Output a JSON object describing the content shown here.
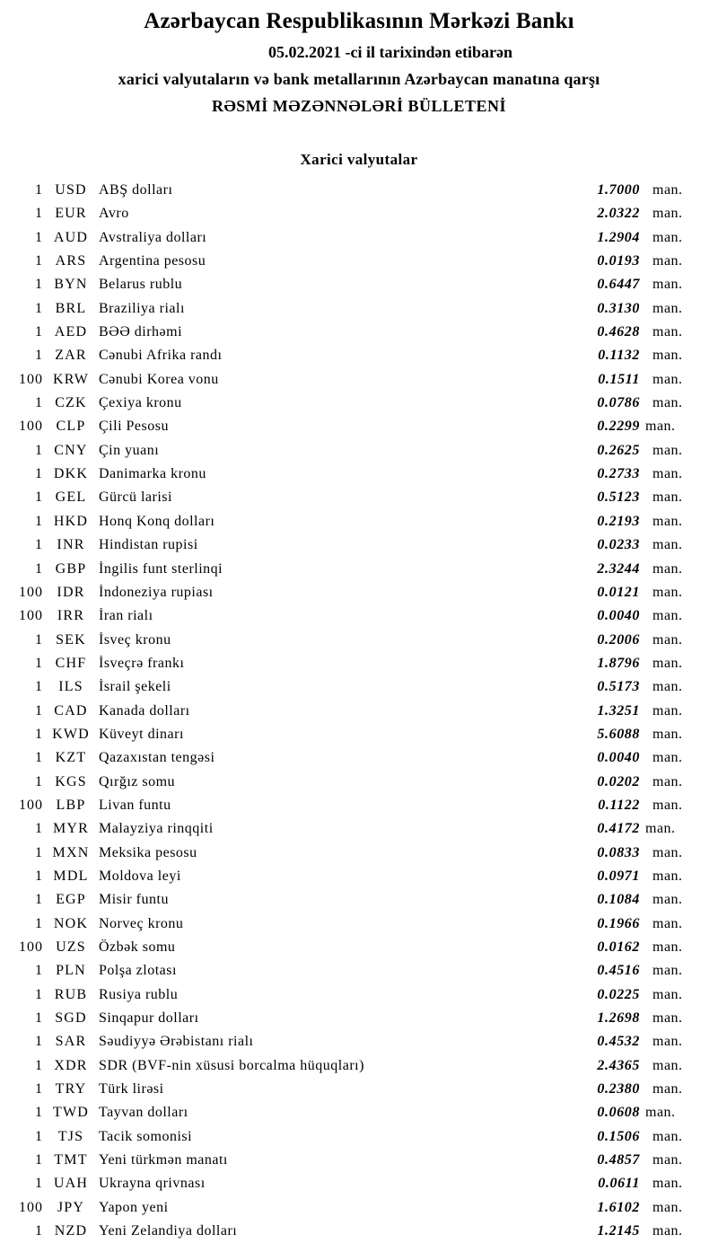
{
  "header": {
    "bank_name": "Azərbaycan Respublikasının Mərkəzi Bankı",
    "date_line": "05.02.2021 -ci il tarixindən etibarən",
    "scope_line": "xarici valyutaların və bank metallarının Azərbaycan manatına qarşı",
    "bulletin_title": "RƏSMİ MƏZƏNNƏLƏRİ BÜLLETENİ"
  },
  "section": {
    "title": "Xarici valyutalar"
  },
  "unit_label": "man.",
  "rates": [
    {
      "qty": "1",
      "code": "USD",
      "name": "ABŞ dolları",
      "rate": "1.7000"
    },
    {
      "qty": "1",
      "code": "EUR",
      "name": "Avro",
      "rate": "2.0322"
    },
    {
      "qty": "1",
      "code": "AUD",
      "name": "Avstraliya dolları",
      "rate": "1.2904"
    },
    {
      "qty": "1",
      "code": "ARS",
      "name": "Argentina pesosu",
      "rate": "0.0193"
    },
    {
      "qty": "1",
      "code": "BYN",
      "name": "Belarus rublu",
      "rate": "0.6447"
    },
    {
      "qty": "1",
      "code": "BRL",
      "name": "Braziliya rialı",
      "rate": "0.3130"
    },
    {
      "qty": "1",
      "code": "AED",
      "name": "BƏƏ dirhəmi",
      "rate": "0.4628"
    },
    {
      "qty": "1",
      "code": "ZAR",
      "name": "Cənubi Afrika randı",
      "rate": "0.1132"
    },
    {
      "qty": "100",
      "code": "KRW",
      "name": "Cənubi Korea vonu",
      "rate": "0.1511"
    },
    {
      "qty": "1",
      "code": "CZK",
      "name": "Çexiya kronu",
      "rate": "0.0786"
    },
    {
      "qty": "100",
      "code": "CLP",
      "name": "Çili Pesosu",
      "rate": "0.2299",
      "tight": true
    },
    {
      "qty": "1",
      "code": "CNY",
      "name": "Çin yuanı",
      "rate": "0.2625"
    },
    {
      "qty": "1",
      "code": "DKK",
      "name": "Danimarka kronu",
      "rate": "0.2733"
    },
    {
      "qty": "1",
      "code": "GEL",
      "name": "Gürcü larisi",
      "rate": "0.5123"
    },
    {
      "qty": "1",
      "code": "HKD",
      "name": "Honq Konq dolları",
      "rate": "0.2193"
    },
    {
      "qty": "1",
      "code": "INR",
      "name": "Hindistan rupisi",
      "rate": "0.0233"
    },
    {
      "qty": "1",
      "code": "GBP",
      "name": "İngilis funt sterlinqi",
      "rate": "2.3244"
    },
    {
      "qty": "100",
      "code": "IDR",
      "name": "İndoneziya rupiası",
      "rate": "0.0121"
    },
    {
      "qty": "100",
      "code": "IRR",
      "name": "İran rialı",
      "rate": "0.0040"
    },
    {
      "qty": "1",
      "code": "SEK",
      "name": "İsveç kronu",
      "rate": "0.2006"
    },
    {
      "qty": "1",
      "code": "CHF",
      "name": "İsveçrə frankı",
      "rate": "1.8796"
    },
    {
      "qty": "1",
      "code": "ILS",
      "name": "İsrail şekeli",
      "rate": "0.5173"
    },
    {
      "qty": "1",
      "code": "CAD",
      "name": "Kanada dolları",
      "rate": "1.3251"
    },
    {
      "qty": "1",
      "code": "KWD",
      "name": "Küveyt dinarı",
      "rate": "5.6088"
    },
    {
      "qty": "1",
      "code": "KZT",
      "name": "Qazaxıstan tengəsi",
      "rate": "0.0040"
    },
    {
      "qty": "1",
      "code": "KGS",
      "name": "Qırğız somu",
      "rate": "0.0202"
    },
    {
      "qty": "100",
      "code": "LBP",
      "name": "Livan funtu",
      "rate": "0.1122"
    },
    {
      "qty": "1",
      "code": "MYR",
      "name": "Malayziya rinqqiti",
      "rate": "0.4172",
      "tight": true
    },
    {
      "qty": "1",
      "code": "MXN",
      "name": "Meksika pesosu",
      "rate": "0.0833"
    },
    {
      "qty": "1",
      "code": "MDL",
      "name": "Moldova leyi",
      "rate": "0.0971"
    },
    {
      "qty": "1",
      "code": "EGP",
      "name": "Misir funtu",
      "rate": "0.1084"
    },
    {
      "qty": "1",
      "code": "NOK",
      "name": "Norveç kronu",
      "rate": "0.1966"
    },
    {
      "qty": "100",
      "code": "UZS",
      "name": "Özbək somu",
      "rate": "0.0162"
    },
    {
      "qty": "1",
      "code": "PLN",
      "name": "Polşa zlotası",
      "rate": "0.4516"
    },
    {
      "qty": "1",
      "code": "RUB",
      "name": "Rusiya rublu",
      "rate": "0.0225"
    },
    {
      "qty": "1",
      "code": "SGD",
      "name": "Sinqapur dolları",
      "rate": "1.2698"
    },
    {
      "qty": "1",
      "code": "SAR",
      "name": "Səudiyyə Ərəbistanı rialı",
      "rate": "0.4532"
    },
    {
      "qty": "1",
      "code": "XDR",
      "name": "SDR (BVF-nin xüsusi borcalma hüquqları)",
      "rate": "2.4365"
    },
    {
      "qty": "1",
      "code": "TRY",
      "name": "Türk lirəsi",
      "rate": "0.2380"
    },
    {
      "qty": "1",
      "code": "TWD",
      "name": "Tayvan dolları",
      "rate": "0.0608",
      "tight": true
    },
    {
      "qty": "1",
      "code": "TJS",
      "name": "Tacik somonisi",
      "rate": "0.1506"
    },
    {
      "qty": "1",
      "code": "TMT",
      "name": "Yeni türkmən manatı",
      "rate": "0.4857"
    },
    {
      "qty": "1",
      "code": "UAH",
      "name": "Ukrayna qrivnası",
      "rate": "0.0611"
    },
    {
      "qty": "100",
      "code": "JPY",
      "name": "Yapon yeni",
      "rate": "1.6102"
    },
    {
      "qty": "1",
      "code": "NZD",
      "name": "Yeni Zelandiya dolları",
      "rate": "1.2145"
    }
  ]
}
